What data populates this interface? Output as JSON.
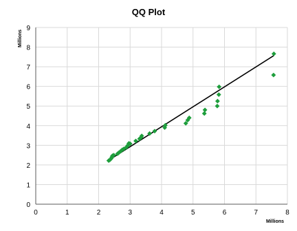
{
  "chart_data": {
    "type": "scatter",
    "title": "QQ Plot",
    "xlabel": "",
    "ylabel": "",
    "x_unit_label": "Millions",
    "y_unit_label": "Millions",
    "xlim": [
      0,
      8
    ],
    "ylim": [
      0,
      9
    ],
    "x_ticks": [
      "0",
      "1",
      "2",
      "3",
      "4",
      "5",
      "6",
      "7",
      "8"
    ],
    "y_ticks": [
      "0",
      "1",
      "2",
      "3",
      "4",
      "5",
      "6",
      "7",
      "8",
      "9"
    ],
    "grid": true,
    "marker_color": "#1e9e3c",
    "line_color": "#000000",
    "series": [
      {
        "type": "scatter",
        "points": [
          [
            2.32,
            2.22
          ],
          [
            2.36,
            2.26
          ],
          [
            2.4,
            2.33
          ],
          [
            2.42,
            2.4
          ],
          [
            2.44,
            2.47
          ],
          [
            2.48,
            2.5
          ],
          [
            2.6,
            2.57
          ],
          [
            2.64,
            2.62
          ],
          [
            2.7,
            2.7
          ],
          [
            2.75,
            2.77
          ],
          [
            2.8,
            2.82
          ],
          [
            2.88,
            2.9
          ],
          [
            2.93,
            3.0
          ],
          [
            2.96,
            3.1
          ],
          [
            3.0,
            3.08
          ],
          [
            3.18,
            3.22
          ],
          [
            3.3,
            3.33
          ],
          [
            3.35,
            3.4
          ],
          [
            3.37,
            3.48
          ],
          [
            3.62,
            3.6
          ],
          [
            3.78,
            3.72
          ],
          [
            4.1,
            3.9
          ],
          [
            4.12,
            4.02
          ],
          [
            4.77,
            4.12
          ],
          [
            4.83,
            4.28
          ],
          [
            4.88,
            4.4
          ],
          [
            5.36,
            4.62
          ],
          [
            5.38,
            4.8
          ],
          [
            5.77,
            5.0
          ],
          [
            5.78,
            5.25
          ],
          [
            5.82,
            5.58
          ],
          [
            5.83,
            5.98
          ],
          [
            7.56,
            6.58
          ],
          [
            7.57,
            7.66
          ]
        ]
      },
      {
        "type": "line",
        "points": [
          [
            2.32,
            2.24
          ],
          [
            7.57,
            7.57
          ]
        ]
      }
    ]
  }
}
